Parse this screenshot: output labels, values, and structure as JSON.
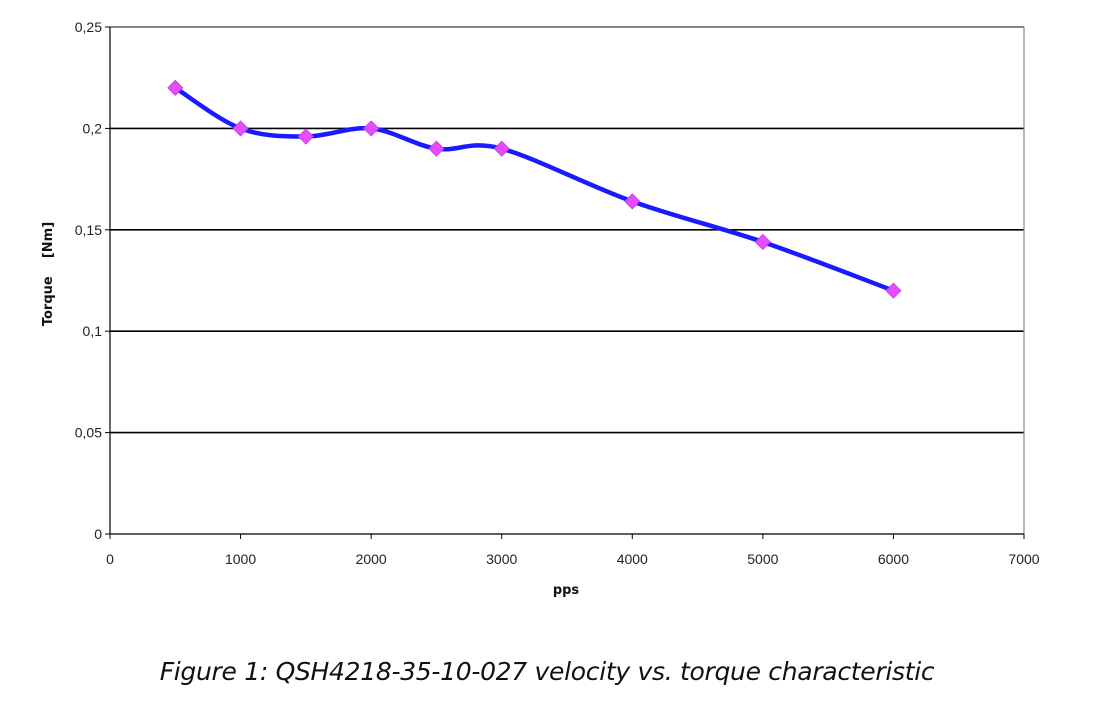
{
  "caption": "Figure 1: QSH4218-35-10-027 velocity vs. torque characteristic",
  "chart_data": {
    "type": "line",
    "title": "",
    "xlabel": "pps",
    "ylabel": "Torque    [Nm]",
    "xlim": [
      0,
      7000
    ],
    "ylim": [
      0,
      0.25
    ],
    "xticks": [
      0,
      1000,
      2000,
      3000,
      4000,
      5000,
      6000,
      7000
    ],
    "xtick_labels": [
      "0",
      "1000",
      "2000",
      "3000",
      "4000",
      "5000",
      "6000",
      "7000"
    ],
    "yticks": [
      0,
      0.05,
      0.1,
      0.15,
      0.2,
      0.25
    ],
    "ytick_labels": [
      "0",
      "0,05",
      "0,1",
      "0,15",
      "0,2",
      "0,25"
    ],
    "grid": "horizontal",
    "legend": "none",
    "series": [
      {
        "x": [
          500,
          1000,
          1500,
          2000,
          2500,
          3000,
          4000,
          5000,
          6000
        ],
        "y": [
          0.22,
          0.2,
          0.196,
          0.2,
          0.19,
          0.19,
          0.164,
          0.144,
          0.12
        ],
        "line_color": "#1a1aff",
        "marker_color": "#e64cff",
        "marker": "diamond",
        "smooth": true
      }
    ]
  }
}
